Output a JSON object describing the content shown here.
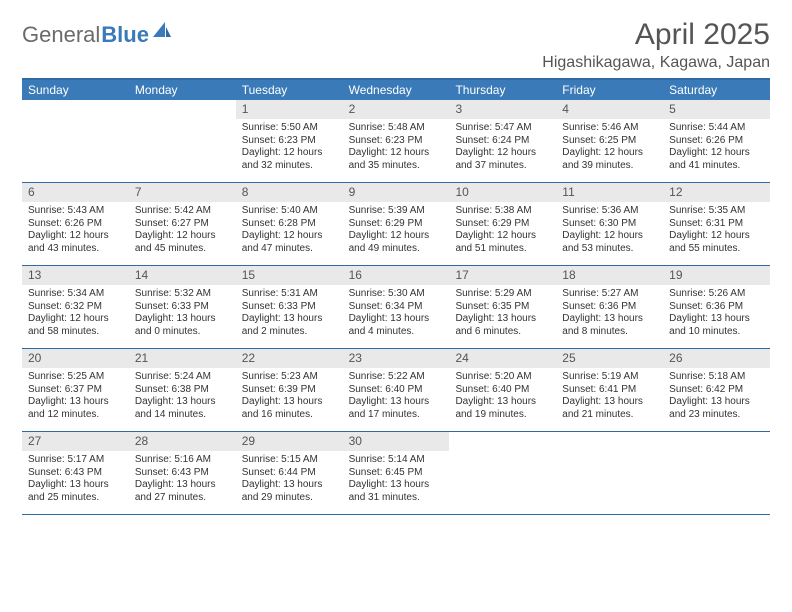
{
  "logo": {
    "text1": "General",
    "text2": "Blue"
  },
  "title": "April 2025",
  "location": "Higashikagawa, Kagawa, Japan",
  "colors": {
    "header_bg": "#3a7ab8",
    "border": "#2f6aa3",
    "daynum_bg": "#e9e9e9",
    "text": "#333333",
    "logo_gray": "#6b6b6b"
  },
  "day_headers": [
    "Sunday",
    "Monday",
    "Tuesday",
    "Wednesday",
    "Thursday",
    "Friday",
    "Saturday"
  ],
  "weeks": [
    [
      null,
      null,
      {
        "n": "1",
        "sr": "5:50 AM",
        "ss": "6:23 PM",
        "dl": "12 hours and 32 minutes."
      },
      {
        "n": "2",
        "sr": "5:48 AM",
        "ss": "6:23 PM",
        "dl": "12 hours and 35 minutes."
      },
      {
        "n": "3",
        "sr": "5:47 AM",
        "ss": "6:24 PM",
        "dl": "12 hours and 37 minutes."
      },
      {
        "n": "4",
        "sr": "5:46 AM",
        "ss": "6:25 PM",
        "dl": "12 hours and 39 minutes."
      },
      {
        "n": "5",
        "sr": "5:44 AM",
        "ss": "6:26 PM",
        "dl": "12 hours and 41 minutes."
      }
    ],
    [
      {
        "n": "6",
        "sr": "5:43 AM",
        "ss": "6:26 PM",
        "dl": "12 hours and 43 minutes."
      },
      {
        "n": "7",
        "sr": "5:42 AM",
        "ss": "6:27 PM",
        "dl": "12 hours and 45 minutes."
      },
      {
        "n": "8",
        "sr": "5:40 AM",
        "ss": "6:28 PM",
        "dl": "12 hours and 47 minutes."
      },
      {
        "n": "9",
        "sr": "5:39 AM",
        "ss": "6:29 PM",
        "dl": "12 hours and 49 minutes."
      },
      {
        "n": "10",
        "sr": "5:38 AM",
        "ss": "6:29 PM",
        "dl": "12 hours and 51 minutes."
      },
      {
        "n": "11",
        "sr": "5:36 AM",
        "ss": "6:30 PM",
        "dl": "12 hours and 53 minutes."
      },
      {
        "n": "12",
        "sr": "5:35 AM",
        "ss": "6:31 PM",
        "dl": "12 hours and 55 minutes."
      }
    ],
    [
      {
        "n": "13",
        "sr": "5:34 AM",
        "ss": "6:32 PM",
        "dl": "12 hours and 58 minutes."
      },
      {
        "n": "14",
        "sr": "5:32 AM",
        "ss": "6:33 PM",
        "dl": "13 hours and 0 minutes."
      },
      {
        "n": "15",
        "sr": "5:31 AM",
        "ss": "6:33 PM",
        "dl": "13 hours and 2 minutes."
      },
      {
        "n": "16",
        "sr": "5:30 AM",
        "ss": "6:34 PM",
        "dl": "13 hours and 4 minutes."
      },
      {
        "n": "17",
        "sr": "5:29 AM",
        "ss": "6:35 PM",
        "dl": "13 hours and 6 minutes."
      },
      {
        "n": "18",
        "sr": "5:27 AM",
        "ss": "6:36 PM",
        "dl": "13 hours and 8 minutes."
      },
      {
        "n": "19",
        "sr": "5:26 AM",
        "ss": "6:36 PM",
        "dl": "13 hours and 10 minutes."
      }
    ],
    [
      {
        "n": "20",
        "sr": "5:25 AM",
        "ss": "6:37 PM",
        "dl": "13 hours and 12 minutes."
      },
      {
        "n": "21",
        "sr": "5:24 AM",
        "ss": "6:38 PM",
        "dl": "13 hours and 14 minutes."
      },
      {
        "n": "22",
        "sr": "5:23 AM",
        "ss": "6:39 PM",
        "dl": "13 hours and 16 minutes."
      },
      {
        "n": "23",
        "sr": "5:22 AM",
        "ss": "6:40 PM",
        "dl": "13 hours and 17 minutes."
      },
      {
        "n": "24",
        "sr": "5:20 AM",
        "ss": "6:40 PM",
        "dl": "13 hours and 19 minutes."
      },
      {
        "n": "25",
        "sr": "5:19 AM",
        "ss": "6:41 PM",
        "dl": "13 hours and 21 minutes."
      },
      {
        "n": "26",
        "sr": "5:18 AM",
        "ss": "6:42 PM",
        "dl": "13 hours and 23 minutes."
      }
    ],
    [
      {
        "n": "27",
        "sr": "5:17 AM",
        "ss": "6:43 PM",
        "dl": "13 hours and 25 minutes."
      },
      {
        "n": "28",
        "sr": "5:16 AM",
        "ss": "6:43 PM",
        "dl": "13 hours and 27 minutes."
      },
      {
        "n": "29",
        "sr": "5:15 AM",
        "ss": "6:44 PM",
        "dl": "13 hours and 29 minutes."
      },
      {
        "n": "30",
        "sr": "5:14 AM",
        "ss": "6:45 PM",
        "dl": "13 hours and 31 minutes."
      },
      null,
      null,
      null
    ]
  ],
  "labels": {
    "sunrise": "Sunrise: ",
    "sunset": "Sunset: ",
    "daylight": "Daylight: "
  }
}
